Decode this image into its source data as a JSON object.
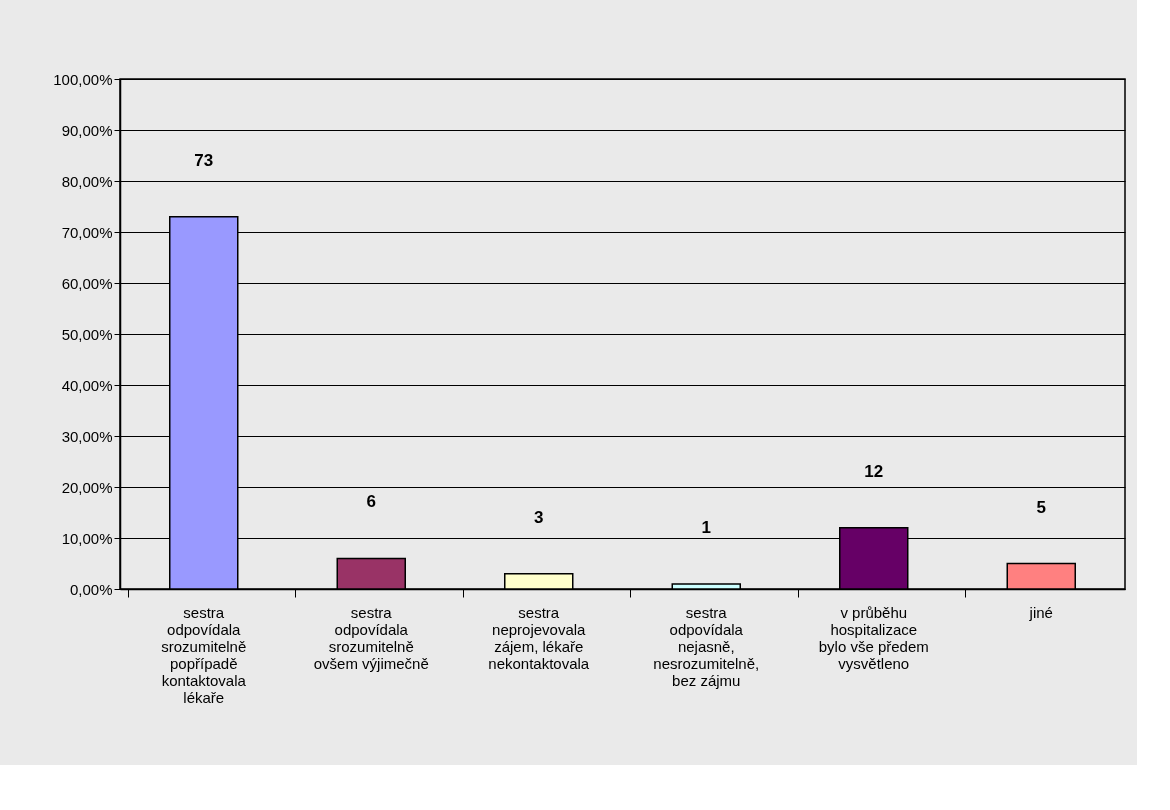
{
  "chart_data": {
    "type": "bar",
    "categories": [
      "sestra odpovídala srozumitelně popřípadě kontaktovala lékaře",
      "sestra odpovídala srozumitelně ovšem výjimečně",
      "sestra neprojevovala zájem, lékaře nekontaktovala",
      "sestra odpovídala nejasně, nesrozumitelně, bez zájmu",
      "v průběhu hospitalizace bylo vše předem vysvětleno",
      "jiné"
    ],
    "values": [
      73,
      6,
      3,
      1,
      12,
      5
    ],
    "colors": [
      "#9999ff",
      "#993366",
      "#ffffcc",
      "#ccffff",
      "#660066",
      "#ff8080"
    ],
    "ylim": [
      0,
      100
    ],
    "yticks": [
      {
        "value": 0,
        "label": "0,00%"
      },
      {
        "value": 10,
        "label": "10,00%"
      },
      {
        "value": 20,
        "label": "20,00%"
      },
      {
        "value": 30,
        "label": "30,00%"
      },
      {
        "value": 40,
        "label": "40,00%"
      },
      {
        "value": 50,
        "label": "50,00%"
      },
      {
        "value": 60,
        "label": "60,00%"
      },
      {
        "value": 70,
        "label": "70,00%"
      },
      {
        "value": 80,
        "label": "80,00%"
      },
      {
        "value": 90,
        "label": "90,00%"
      },
      {
        "value": 100,
        "label": "100,00%"
      }
    ],
    "grid": "y",
    "data_labels": true
  }
}
